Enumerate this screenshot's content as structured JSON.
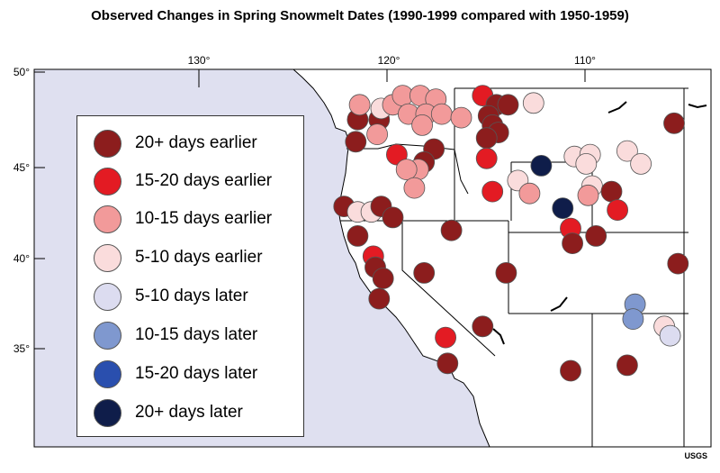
{
  "title": "Observed Changes in Spring Snowmelt Dates (1990-1999 compared with 1950-1959)",
  "credit": "USGS",
  "longitude_labels": [
    "130°",
    "120°",
    "110°"
  ],
  "latitude_labels": [
    "50°",
    "45°",
    "40°",
    "35°"
  ],
  "legend": [
    {
      "key": "e20",
      "label": "20+ days earlier",
      "color": "#8c1d1d"
    },
    {
      "key": "e15",
      "label": "15-20 days earlier",
      "color": "#e31b23"
    },
    {
      "key": "e10",
      "label": "10-15 days earlier",
      "color": "#f29a9a"
    },
    {
      "key": "e5",
      "label": "5-10 days earlier",
      "color": "#fadcdc"
    },
    {
      "key": "l5",
      "label": "5-10 days later",
      "color": "#dcdcf0"
    },
    {
      "key": "l10",
      "label": "10-15 days later",
      "color": "#7f98cf"
    },
    {
      "key": "l15",
      "label": "15-20 days later",
      "color": "#2a4fae"
    },
    {
      "key": "l20",
      "label": "20+ days later",
      "color": "#0f1d4a"
    }
  ],
  "colors": {
    "ocean": "#dfe0f0",
    "land": "#ffffff",
    "border": "#000000"
  },
  "sites": [
    {
      "lon": -121.5,
      "lat": 47.6,
      "cat": "e20"
    },
    {
      "lon": -121.6,
      "lat": 46.4,
      "cat": "e20"
    },
    {
      "lon": -120.4,
      "lat": 47.6,
      "cat": "e20"
    },
    {
      "lon": -121.4,
      "lat": 48.4,
      "cat": "e10"
    },
    {
      "lon": -120.3,
      "lat": 48.2,
      "cat": "e5"
    },
    {
      "lon": -119.7,
      "lat": 48.4,
      "cat": "e10"
    },
    {
      "lon": -119.2,
      "lat": 48.9,
      "cat": "e10"
    },
    {
      "lon": -118.3,
      "lat": 48.9,
      "cat": "e10"
    },
    {
      "lon": -117.5,
      "lat": 48.7,
      "cat": "e10"
    },
    {
      "lon": -118.9,
      "lat": 47.9,
      "cat": "e10"
    },
    {
      "lon": -118.0,
      "lat": 47.9,
      "cat": "e10"
    },
    {
      "lon": -117.2,
      "lat": 47.9,
      "cat": "e10"
    },
    {
      "lon": -116.2,
      "lat": 47.7,
      "cat": "e10"
    },
    {
      "lon": -120.5,
      "lat": 46.8,
      "cat": "e10"
    },
    {
      "lon": -118.2,
      "lat": 47.3,
      "cat": "e10"
    },
    {
      "lon": -117.6,
      "lat": 46.0,
      "cat": "e20"
    },
    {
      "lon": -118.1,
      "lat": 45.3,
      "cat": "e20"
    },
    {
      "lon": -119.5,
      "lat": 45.7,
      "cat": "e15"
    },
    {
      "lon": -118.4,
      "lat": 44.9,
      "cat": "e10"
    },
    {
      "lon": -119.0,
      "lat": 44.9,
      "cat": "e10"
    },
    {
      "lon": -118.6,
      "lat": 43.9,
      "cat": "e10"
    },
    {
      "lon": -115.1,
      "lat": 48.9,
      "cat": "e15"
    },
    {
      "lon": -114.4,
      "lat": 48.4,
      "cat": "e20"
    },
    {
      "lon": -113.8,
      "lat": 48.4,
      "cat": "e20"
    },
    {
      "lon": -114.8,
      "lat": 47.8,
      "cat": "e20"
    },
    {
      "lon": -114.6,
      "lat": 47.3,
      "cat": "e20"
    },
    {
      "lon": -114.3,
      "lat": 46.9,
      "cat": "e20"
    },
    {
      "lon": -114.9,
      "lat": 46.6,
      "cat": "e20"
    },
    {
      "lon": -112.5,
      "lat": 48.5,
      "cat": "e5"
    },
    {
      "lon": -114.9,
      "lat": 45.5,
      "cat": "e15"
    },
    {
      "lon": -114.6,
      "lat": 43.7,
      "cat": "e15"
    },
    {
      "lon": -113.3,
      "lat": 44.3,
      "cat": "e5"
    },
    {
      "lon": -112.7,
      "lat": 43.6,
      "cat": "e10"
    },
    {
      "lon": -112.1,
      "lat": 45.1,
      "cat": "l20"
    },
    {
      "lon": -110.4,
      "lat": 45.6,
      "cat": "e5"
    },
    {
      "lon": -109.6,
      "lat": 45.7,
      "cat": "e5"
    },
    {
      "lon": -109.8,
      "lat": 45.2,
      "cat": "e5"
    },
    {
      "lon": -107.7,
      "lat": 45.9,
      "cat": "e5"
    },
    {
      "lon": -107.0,
      "lat": 45.2,
      "cat": "e5"
    },
    {
      "lon": -109.5,
      "lat": 44.0,
      "cat": "e5"
    },
    {
      "lon": -109.7,
      "lat": 43.5,
      "cat": "e10"
    },
    {
      "lon": -108.5,
      "lat": 43.7,
      "cat": "e20"
    },
    {
      "lon": -108.2,
      "lat": 42.7,
      "cat": "e15"
    },
    {
      "lon": -111.0,
      "lat": 42.8,
      "cat": "l20"
    },
    {
      "lon": -110.6,
      "lat": 41.7,
      "cat": "e15"
    },
    {
      "lon": -110.5,
      "lat": 40.9,
      "cat": "e20"
    },
    {
      "lon": -109.3,
      "lat": 41.3,
      "cat": "e20"
    },
    {
      "lon": -105.3,
      "lat": 47.4,
      "cat": "e20"
    },
    {
      "lon": -105.1,
      "lat": 39.8,
      "cat": "e20"
    },
    {
      "lon": -107.3,
      "lat": 37.6,
      "cat": "l10"
    },
    {
      "lon": -107.4,
      "lat": 36.8,
      "cat": "l10"
    },
    {
      "lon": -105.8,
      "lat": 36.4,
      "cat": "e5"
    },
    {
      "lon": -105.5,
      "lat": 35.9,
      "cat": "l5"
    },
    {
      "lon": -122.2,
      "lat": 42.9,
      "cat": "e20"
    },
    {
      "lon": -121.5,
      "lat": 42.6,
      "cat": "e5"
    },
    {
      "lon": -120.8,
      "lat": 42.6,
      "cat": "e5"
    },
    {
      "lon": -120.3,
      "lat": 42.9,
      "cat": "e20"
    },
    {
      "lon": -119.7,
      "lat": 42.3,
      "cat": "e20"
    },
    {
      "lon": -121.5,
      "lat": 41.3,
      "cat": "e20"
    },
    {
      "lon": -116.7,
      "lat": 41.6,
      "cat": "e20"
    },
    {
      "lon": -120.7,
      "lat": 40.2,
      "cat": "e15"
    },
    {
      "lon": -120.6,
      "lat": 39.6,
      "cat": "e20"
    },
    {
      "lon": -120.2,
      "lat": 39.0,
      "cat": "e20"
    },
    {
      "lon": -120.4,
      "lat": 37.9,
      "cat": "e20"
    },
    {
      "lon": -118.1,
      "lat": 39.3,
      "cat": "e20"
    },
    {
      "lon": -113.9,
      "lat": 39.3,
      "cat": "e20"
    },
    {
      "lon": -115.1,
      "lat": 36.4,
      "cat": "e20"
    },
    {
      "lon": -117.0,
      "lat": 35.8,
      "cat": "e15"
    },
    {
      "lon": -116.9,
      "lat": 34.4,
      "cat": "e20"
    },
    {
      "lon": -110.6,
      "lat": 34.0,
      "cat": "e20"
    },
    {
      "lon": -107.7,
      "lat": 34.3,
      "cat": "e20"
    }
  ]
}
